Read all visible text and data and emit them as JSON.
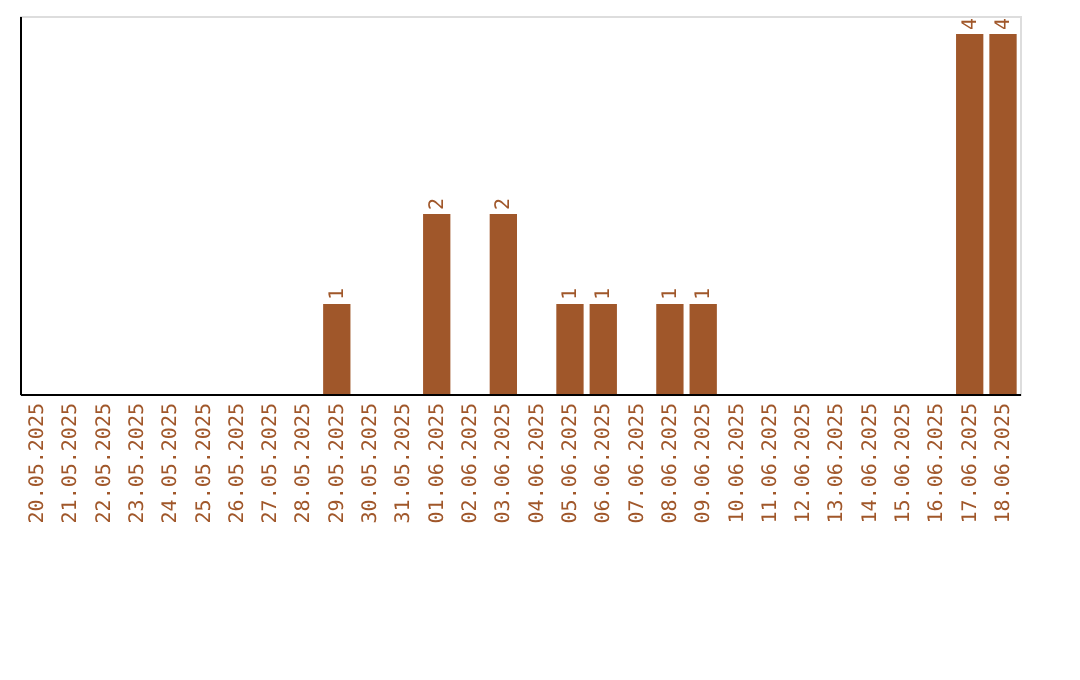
{
  "chart_data": {
    "type": "bar",
    "categories": [
      "20.05.2025",
      "21.05.2025",
      "22.05.2025",
      "23.05.2025",
      "24.05.2025",
      "25.05.2025",
      "26.05.2025",
      "27.05.2025",
      "28.05.2025",
      "29.05.2025",
      "30.05.2025",
      "31.05.2025",
      "01.06.2025",
      "02.06.2025",
      "03.06.2025",
      "04.06.2025",
      "05.06.2025",
      "06.06.2025",
      "07.06.2025",
      "08.06.2025",
      "09.06.2025",
      "10.06.2025",
      "11.06.2025",
      "12.06.2025",
      "13.06.2025",
      "14.06.2025",
      "15.06.2025",
      "16.06.2025",
      "17.06.2025",
      "18.06.2025"
    ],
    "values": [
      null,
      null,
      null,
      null,
      null,
      null,
      null,
      null,
      null,
      1,
      null,
      null,
      2,
      null,
      2,
      null,
      1,
      1,
      null,
      1,
      1,
      null,
      null,
      null,
      null,
      null,
      null,
      null,
      4,
      4
    ],
    "color": "#a0572a",
    "ylim": [
      0,
      4.2
    ],
    "data_labels": true,
    "tick_labels": "x"
  }
}
